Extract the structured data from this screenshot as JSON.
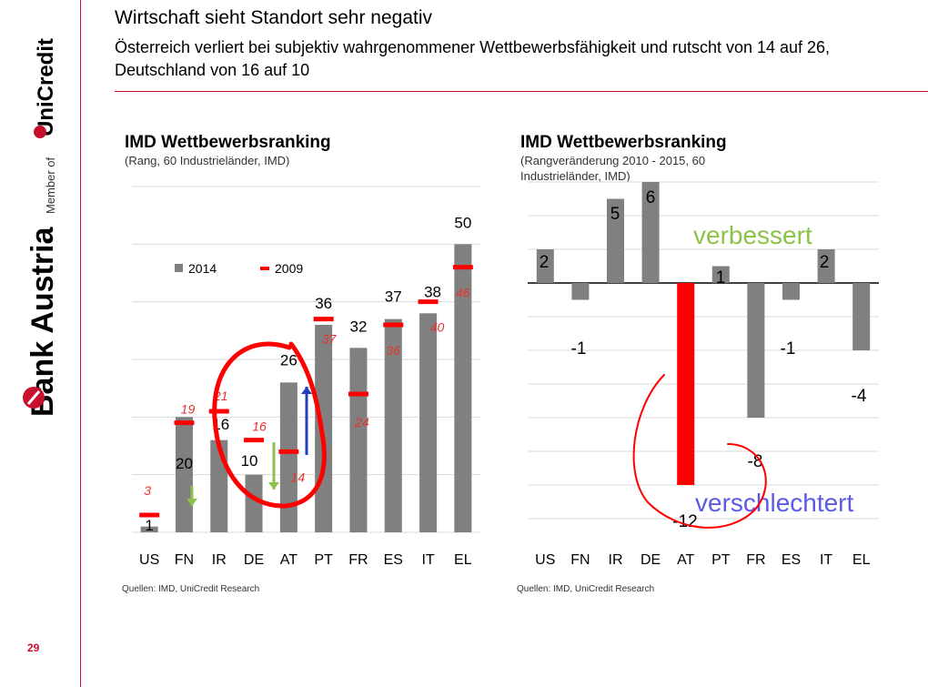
{
  "page": {
    "title": "Wirtschaft sieht Standort sehr negativ",
    "subtitle": "Österreich verliert bei subjektiv wahrgenommener Wettbewerbsfähigkeit und rutscht von 14 auf 26, Deutschland von 16 auf 10",
    "page_number": "29",
    "accent_color": "#c8102e"
  },
  "logo": {
    "brand": "Bank Austria",
    "member_of": "Member of",
    "parent": "UniCredit"
  },
  "chart_data": [
    {
      "type": "bar",
      "title": "IMD Wettbewerbsranking",
      "subtitle": "(Rang, 60 Industrieländer, IMD)",
      "categories": [
        "US",
        "FN",
        "IR",
        "DE",
        "AT",
        "PT",
        "FR",
        "ES",
        "IT",
        "EL"
      ],
      "series": [
        {
          "name": "2014",
          "values": [
            1,
            20,
            16,
            10,
            26,
            36,
            32,
            37,
            38,
            50
          ],
          "color": "#808080"
        },
        {
          "name": "2009",
          "values": [
            3,
            19,
            21,
            16,
            14,
            37,
            24,
            36,
            40,
            46
          ],
          "color": "#ff0000",
          "marker": "dash"
        }
      ],
      "ylim": [
        0,
        60
      ],
      "grid": true,
      "legend": "top-left",
      "annotations": {
        "arrows": [
          {
            "category": "FN",
            "direction": "down",
            "color": "#8bc34a"
          },
          {
            "category": "DE",
            "direction": "down",
            "color": "#8bc34a"
          },
          {
            "category": "AT",
            "direction": "up",
            "color": "#1f3fbf"
          }
        ],
        "highlight": "circle around IR, DE, AT"
      },
      "source": "Quellen: IMD, UniCredit Research"
    },
    {
      "type": "bar",
      "title": "IMD Wettbewerbsranking",
      "subtitle": "(Rangveränderung 2010 - 2015, 60 Industrieländer, IMD)",
      "categories": [
        "US",
        "FN",
        "IR",
        "DE",
        "AT",
        "PT",
        "FR",
        "ES",
        "IT",
        "EL"
      ],
      "series": [
        {
          "name": "",
          "values": [
            2,
            -1,
            5,
            6,
            -12,
            1,
            -8,
            -1,
            2,
            -4
          ],
          "color": "#808080",
          "highlight": {
            "AT": "#ff0000"
          }
        }
      ],
      "ylim": [
        -14,
        6
      ],
      "grid": true,
      "annotations": {
        "labels": [
          {
            "text": "verbessert",
            "color": "#8bc34a"
          },
          {
            "text": "verschlechtert",
            "color": "#5a5ae6"
          }
        ],
        "highlight": "red curve around AT"
      },
      "source": "Quellen: IMD, UniCredit Research"
    }
  ]
}
